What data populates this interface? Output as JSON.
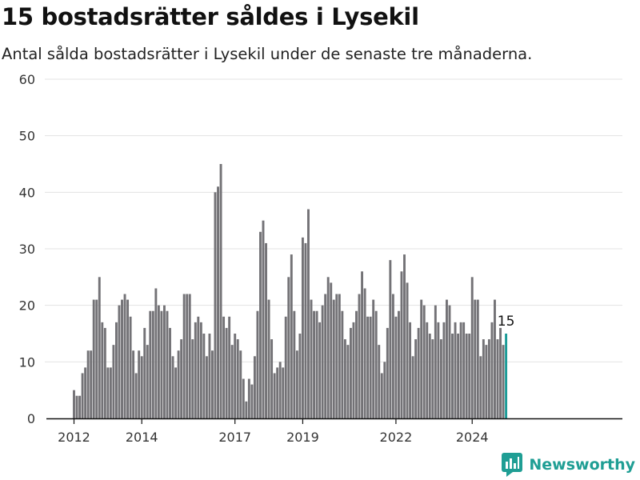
{
  "title": "15 bostadsrätter såldes i Lysekil",
  "subtitle": "Antal sålda bostadsrätter i Lysekil under de senaste tre månaderna.",
  "brand": {
    "name": "Newsworthy",
    "color": "#1f9e94"
  },
  "colors": {
    "bar": "#737276",
    "highlight": "#1a9b97",
    "grid": "#e3e3e3",
    "axis": "#111111"
  },
  "chart_data": {
    "type": "bar",
    "x_start": "2012-03",
    "x_interval": "month",
    "values": [
      5,
      4,
      4,
      8,
      9,
      12,
      12,
      21,
      21,
      25,
      17,
      16,
      9,
      9,
      13,
      17,
      20,
      21,
      22,
      21,
      18,
      12,
      8,
      12,
      11,
      16,
      13,
      19,
      19,
      23,
      20,
      19,
      20,
      19,
      16,
      11,
      9,
      12,
      14,
      22,
      22,
      22,
      14,
      17,
      18,
      17,
      15,
      11,
      15,
      12,
      40,
      41,
      45,
      18,
      16,
      18,
      13,
      15,
      14,
      12,
      7,
      3,
      7,
      6,
      11,
      19,
      33,
      35,
      31,
      21,
      14,
      8,
      9,
      10,
      9,
      18,
      25,
      29,
      19,
      12,
      15,
      32,
      31,
      37,
      21,
      19,
      19,
      17,
      20,
      22,
      25,
      24,
      21,
      22,
      22,
      19,
      14,
      13,
      16,
      17,
      19,
      22,
      26,
      23,
      18,
      18,
      21,
      19,
      13,
      8,
      10,
      16,
      28,
      22,
      18,
      19,
      26,
      29,
      24,
      17,
      11,
      14,
      16,
      21,
      20,
      17,
      15,
      14,
      20,
      17,
      14,
      17,
      21,
      20,
      15,
      17,
      15,
      17,
      17,
      15,
      15,
      25,
      21,
      21,
      11,
      14,
      13,
      14,
      17,
      21,
      14,
      16,
      13,
      15
    ],
    "highlight_last": true,
    "highlight_label": "15",
    "yticks": [
      0,
      10,
      20,
      30,
      40,
      50,
      60
    ],
    "ylim": [
      0,
      60
    ],
    "xticks": [
      {
        "label": "2012",
        "month": "2012-03"
      },
      {
        "label": "2014",
        "month": "2014-03"
      },
      {
        "label": "2017",
        "month": "2016-12"
      },
      {
        "label": "2019",
        "month": "2018-12"
      },
      {
        "label": "2022",
        "month": "2021-09"
      },
      {
        "label": "2024",
        "month": "2023-12"
      }
    ],
    "grid": true,
    "xlabel": "",
    "ylabel": ""
  }
}
